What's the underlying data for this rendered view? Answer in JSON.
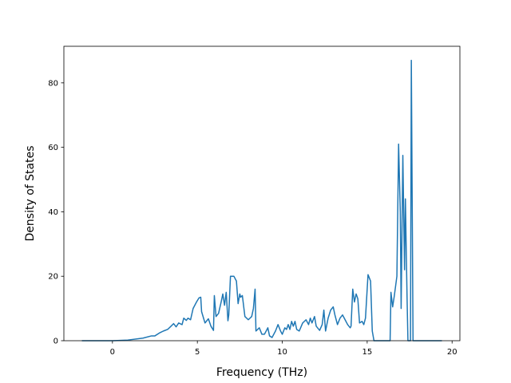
{
  "chart_data": {
    "type": "line",
    "xlabel": "Frequency (THz)",
    "ylabel": "Density of States",
    "xlim": [
      -2.86,
      20.46
    ],
    "ylim": [
      0,
      91.35
    ],
    "xticks": [
      0,
      5,
      10,
      15,
      20
    ],
    "yticks": [
      0,
      20,
      40,
      60,
      80
    ],
    "grid": false,
    "series": [
      {
        "color": "#1f77b4",
        "x": [
          -1.8,
          0,
          0.9,
          1.8,
          2.3,
          2.5,
          2.8,
          3.0,
          3.25,
          3.45,
          3.6,
          3.75,
          3.9,
          4.1,
          4.2,
          4.35,
          4.45,
          4.6,
          4.75,
          4.95,
          5.1,
          5.2,
          5.25,
          5.45,
          5.65,
          5.8,
          5.95,
          6.0,
          6.1,
          6.25,
          6.4,
          6.5,
          6.6,
          6.7,
          6.8,
          6.85,
          6.95,
          7.15,
          7.3,
          7.4,
          7.5,
          7.55,
          7.65,
          7.8,
          8.0,
          8.2,
          8.3,
          8.4,
          8.45,
          8.65,
          8.8,
          8.95,
          9.15,
          9.25,
          9.4,
          9.6,
          9.75,
          9.9,
          10.0,
          10.15,
          10.25,
          10.35,
          10.45,
          10.55,
          10.65,
          10.75,
          10.85,
          11.0,
          11.2,
          11.4,
          11.55,
          11.65,
          11.75,
          11.9,
          12.0,
          12.2,
          12.35,
          12.45,
          12.55,
          12.7,
          12.85,
          13.0,
          13.1,
          13.25,
          13.4,
          13.55,
          13.7,
          13.85,
          14.0,
          14.05,
          14.15,
          14.25,
          14.35,
          14.45,
          14.55,
          14.7,
          14.8,
          14.9,
          15.05,
          15.2,
          15.3,
          15.4,
          16.35,
          16.4,
          16.5,
          16.6,
          16.75,
          16.85,
          16.95,
          17.0,
          17.1,
          17.2,
          17.25,
          17.35,
          17.4,
          17.55,
          17.6,
          17.7,
          19.4
        ],
        "values": [
          0,
          0,
          0.2,
          0.8,
          1.5,
          1.5,
          2.5,
          3,
          3.5,
          4.5,
          5.3,
          4.3,
          5.5,
          5,
          7,
          6.3,
          7,
          6.5,
          10,
          12,
          13.3,
          13.5,
          9,
          5.5,
          6.8,
          4.5,
          3.2,
          14,
          7.5,
          8.5,
          12,
          14.5,
          11,
          15,
          6.2,
          8,
          20,
          20,
          18.5,
          11.5,
          14.5,
          13.5,
          14,
          7.5,
          6.5,
          7.5,
          10,
          16,
          3,
          4,
          2,
          2,
          4,
          1.5,
          1,
          3,
          5,
          3,
          2,
          4,
          3.5,
          5,
          3.5,
          6,
          4.5,
          6,
          3.5,
          3,
          5.5,
          6.5,
          5,
          7,
          5.5,
          7.5,
          4.5,
          3.2,
          5,
          9.5,
          3,
          7,
          9.5,
          10.5,
          8,
          5,
          7,
          8,
          6.5,
          5,
          4,
          4.5,
          16,
          12,
          14.5,
          13,
          5.5,
          6,
          5,
          7,
          20.5,
          18.5,
          3,
          0,
          0,
          15,
          10.5,
          14,
          20,
          61,
          40,
          10,
          57.5,
          22,
          44,
          13,
          0,
          0,
          87,
          0,
          0
        ]
      }
    ]
  }
}
